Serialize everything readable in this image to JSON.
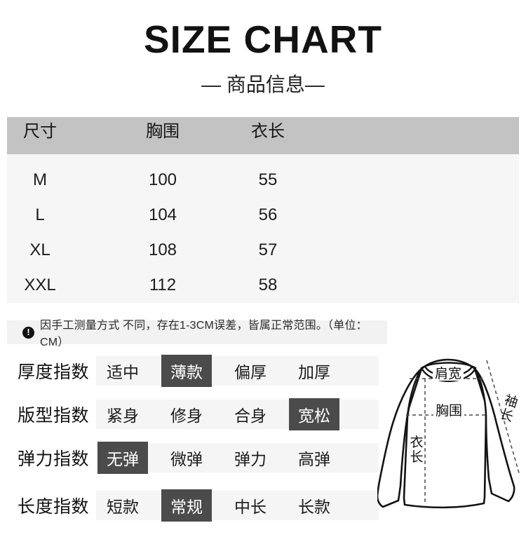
{
  "header": {
    "title": "SIZE CHART",
    "subtitle": "— 商品信息—"
  },
  "size_table": {
    "headers": [
      "尺寸",
      "胸围",
      "衣长"
    ],
    "rows": [
      {
        "size": "M",
        "chest": "100",
        "length": "55"
      },
      {
        "size": "L",
        "chest": "104",
        "length": "56"
      },
      {
        "size": "XL",
        "chest": "108",
        "length": "57"
      },
      {
        "size": "XXL",
        "chest": "112",
        "length": "58"
      }
    ]
  },
  "note": {
    "text": "因手工测量方式 不同，存在1-3CM误差，皆属正常范围。（单位：CM）"
  },
  "index_rows": [
    {
      "label": "厚度指数",
      "options": [
        "适中",
        "薄款",
        "偏厚",
        "加厚"
      ],
      "selected": 1
    },
    {
      "label": "版型指数",
      "options": [
        "紧身",
        "修身",
        "合身",
        "宽松"
      ],
      "selected": 3
    },
    {
      "label": "弹力指数",
      "options": [
        "无弹",
        "微弹",
        "弹力",
        "高弹"
      ],
      "selected": 0
    },
    {
      "label": "长度指数",
      "options": [
        "短款",
        "常规",
        "中长",
        "长款"
      ],
      "selected": 1
    }
  ],
  "diagram": {
    "shoulder_label": "肩宽",
    "sleeve_label": "袖长",
    "chest_label": "胸围",
    "length_label": "衣长"
  },
  "colors": {
    "table-header-bg": "#c3c3c3",
    "table-row-bg": "#f6f6f6",
    "note-bg": "#f2f2f2",
    "option-bar-bg": "#f5f5f5",
    "chip-bg": "#4b4b4b",
    "chip-text": "#ffffff",
    "text-dark": "#1a1a1a"
  }
}
